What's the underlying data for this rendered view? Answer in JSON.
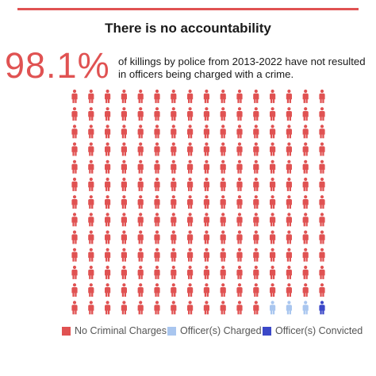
{
  "header": {
    "rule_color": "#e05252"
  },
  "title": "There is no accountability",
  "stat": {
    "value": "98.1%",
    "color": "#e05252",
    "line1": "of killings by police from 2013-2022 have not resulted",
    "line2": "in officers being charged with a crime."
  },
  "chart_data": {
    "type": "waffle",
    "icon": "person-icon",
    "rows": 13,
    "columns": 16,
    "categories": [
      {
        "name": "No Criminal Charges",
        "count": 204,
        "color": "#e05252"
      },
      {
        "name": "Officer(s) Charged",
        "count": 3,
        "color": "#a9c6ef"
      },
      {
        "name": "Officer(s) Convicted",
        "count": 1,
        "color": "#3b48c8"
      }
    ]
  },
  "legend": {
    "items": [
      {
        "label": "No Criminal Charges",
        "color": "#e05252"
      },
      {
        "label": "Officer(s) Charged",
        "color": "#a9c6ef"
      },
      {
        "label": "Officer(s) Convicted",
        "color": "#3b48c8"
      }
    ]
  }
}
